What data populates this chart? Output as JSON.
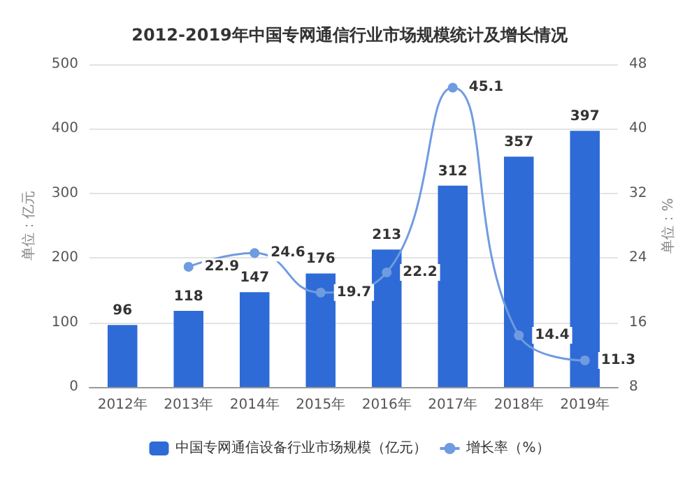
{
  "chart_data": {
    "type": "bar",
    "title": "2012-2019年中国专网通信行业市场规模统计及增长情况",
    "ylabel": "单位：亿元",
    "y2label": "单位：%",
    "categories": [
      "2012年",
      "2013年",
      "2014年",
      "2015年",
      "2016年",
      "2017年",
      "2018年",
      "2019年"
    ],
    "series": [
      {
        "name": "中国专网通信设备行业市场规模（亿元）",
        "color": "#2e6bd6",
        "values": [
          96,
          118,
          147,
          176,
          213,
          312,
          357,
          397
        ]
      },
      {
        "name": "增长率（%）",
        "type": "line",
        "axis": "y2",
        "color": "#6f9be0",
        "values": [
          null,
          22.9,
          24.6,
          19.7,
          22.2,
          45.1,
          14.4,
          11.3
        ]
      }
    ],
    "ylim": [
      0,
      500
    ],
    "yticks": [
      0,
      100,
      200,
      300,
      400,
      500
    ],
    "y2lim": [
      8,
      48
    ],
    "y2ticks": [
      8,
      16,
      24,
      32,
      40,
      48
    ],
    "grid": "y",
    "legend": "bottom",
    "data_labels": true,
    "marker": "circle",
    "line_style": "solid"
  }
}
